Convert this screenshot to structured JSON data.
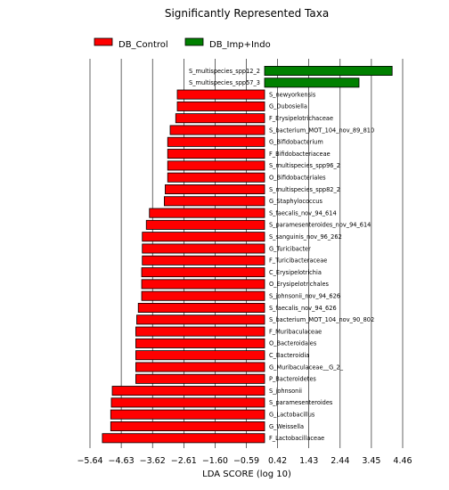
{
  "chart_data": {
    "type": "bar",
    "orientation": "horizontal",
    "title": "Significantly Represented Taxa",
    "xlabel": "LDA SCORE (log 10)",
    "ylabel": "",
    "xlim": [
      -5.64,
      4.46
    ],
    "xticks": [
      -5.64,
      -4.63,
      -3.62,
      -2.61,
      -1.6,
      -0.59,
      0.42,
      1.43,
      2.44,
      3.45,
      4.46
    ],
    "xtick_labels": [
      "−5.64",
      "−4.63",
      "−3.62",
      "−2.61",
      "−1.60",
      "−0.59",
      "0.42",
      "1.43",
      "2.44",
      "3.45",
      "4.46"
    ],
    "grid": "vertical lines at ticks",
    "legend_position": "top-left",
    "series": [
      {
        "name": "DB_Control",
        "color": "#ff0000"
      },
      {
        "name": "DB_Imp+Indo",
        "color": "#008000"
      }
    ],
    "bars": [
      {
        "label": "S_multispecies_spp12_2",
        "value": 4.12,
        "series": 1
      },
      {
        "label": "S_multispecies_spp57_3",
        "value": 3.05,
        "series": 1
      },
      {
        "label": "S_newyorkensis",
        "value": -2.82,
        "series": 0
      },
      {
        "label": "G_Dubosiella",
        "value": -2.82,
        "series": 0
      },
      {
        "label": "F_Erysipelotrichaceae",
        "value": -2.87,
        "series": 0
      },
      {
        "label": "S_bacterium_MOT_104_nov_89_810",
        "value": -3.05,
        "series": 0
      },
      {
        "label": "G_Bifidobacterium",
        "value": -3.13,
        "series": 0
      },
      {
        "label": "F_Bifidobacteriaceae",
        "value": -3.13,
        "series": 0
      },
      {
        "label": "S_multispecies_spp96_2",
        "value": -3.13,
        "series": 0
      },
      {
        "label": "O_Bifidobacteriales",
        "value": -3.13,
        "series": 0
      },
      {
        "label": "S_multispecies_spp82_2",
        "value": -3.21,
        "series": 0
      },
      {
        "label": "G_Staphylococcus",
        "value": -3.24,
        "series": 0
      },
      {
        "label": "S_faecalis_nov_94_614",
        "value": -3.72,
        "series": 0
      },
      {
        "label": "S_paramesenteroides_nov_94_614",
        "value": -3.82,
        "series": 0
      },
      {
        "label": "S_sanguinis_nov_96_262",
        "value": -3.95,
        "series": 0
      },
      {
        "label": "G_Turicibacter",
        "value": -3.95,
        "series": 0
      },
      {
        "label": "F_Turicibacteraceae",
        "value": -3.95,
        "series": 0
      },
      {
        "label": "C_Erysipelotrichia",
        "value": -3.97,
        "series": 0
      },
      {
        "label": "O_Erysipelotrichales",
        "value": -3.97,
        "series": 0
      },
      {
        "label": "S_johnsonii_nov_94_626",
        "value": -3.97,
        "series": 0
      },
      {
        "label": "S_faecalis_nov_94_626",
        "value": -4.08,
        "series": 0
      },
      {
        "label": "S_bacterium_MOT_104_nov_90_802",
        "value": -4.13,
        "series": 0
      },
      {
        "label": "F_Muribaculaceae",
        "value": -4.16,
        "series": 0
      },
      {
        "label": "O_Bacteroidales",
        "value": -4.16,
        "series": 0
      },
      {
        "label": "C_Bacteroidia",
        "value": -4.16,
        "series": 0
      },
      {
        "label": "G_Muribaculaceae__G_2_",
        "value": -4.16,
        "series": 0
      },
      {
        "label": "P_Bacteroidetes",
        "value": -4.16,
        "series": 0
      },
      {
        "label": "S_johnsonii",
        "value": -4.92,
        "series": 0
      },
      {
        "label": "S_paramesenteroides",
        "value": -4.95,
        "series": 0
      },
      {
        "label": "G_Lactobacillus",
        "value": -4.97,
        "series": 0
      },
      {
        "label": "G_Weissella",
        "value": -4.97,
        "series": 0
      },
      {
        "label": "F_Lactobacillaceae",
        "value": -5.24,
        "series": 0
      }
    ]
  }
}
